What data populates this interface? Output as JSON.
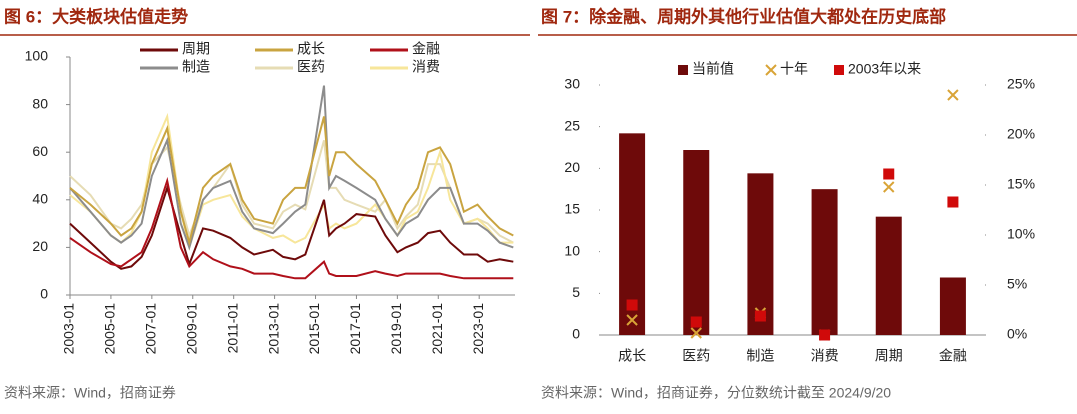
{
  "chart_data": [
    {
      "type": "line",
      "title": "图 6：大类板块估值走势",
      "source": "资料来源：Wind，招商证券",
      "x": [
        "2003-01",
        "2004-01",
        "2005-01",
        "2005-07",
        "2006-01",
        "2006-07",
        "2007-01",
        "2007-10",
        "2008-06",
        "2008-11",
        "2009-07",
        "2010-01",
        "2010-11",
        "2011-06",
        "2012-01",
        "2012-12",
        "2013-06",
        "2014-01",
        "2014-07",
        "2015-06",
        "2015-09",
        "2016-01",
        "2016-06",
        "2017-01",
        "2017-12",
        "2018-06",
        "2019-01",
        "2019-06",
        "2020-01",
        "2020-07",
        "2021-02",
        "2021-08",
        "2022-04",
        "2022-12",
        "2023-06",
        "2024-01",
        "2024-09"
      ],
      "xlim": [
        "2003-01",
        "2024-10"
      ],
      "xticks": [
        "2003-01",
        "2005-01",
        "2007-01",
        "2009-01",
        "2011-01",
        "2013-01",
        "2015-01",
        "2017-01",
        "2019-01",
        "2021-01",
        "2023-01"
      ],
      "ylim": [
        0,
        100
      ],
      "yticks": [
        0,
        20,
        40,
        60,
        80,
        100
      ],
      "legend": "top",
      "series": [
        {
          "name": "周期",
          "color": "#6e0a0a",
          "values": [
            30,
            22,
            14,
            11,
            12,
            16,
            25,
            45,
            25,
            13,
            28,
            27,
            24,
            20,
            17,
            19,
            16,
            15,
            17,
            40,
            25,
            28,
            30,
            34,
            33,
            25,
            18,
            20,
            22,
            26,
            27,
            22,
            17,
            17,
            14,
            15,
            14
          ]
        },
        {
          "name": "成长",
          "color": "#c9a440",
          "values": [
            45,
            38,
            30,
            25,
            28,
            35,
            55,
            70,
            35,
            22,
            45,
            50,
            55,
            40,
            32,
            30,
            40,
            45,
            45,
            75,
            50,
            60,
            60,
            55,
            48,
            40,
            30,
            38,
            45,
            60,
            62,
            55,
            35,
            38,
            33,
            28,
            25
          ]
        },
        {
          "name": "金融",
          "color": "#b0101a",
          "values": [
            24,
            18,
            13,
            12,
            15,
            18,
            28,
            48,
            20,
            12,
            18,
            15,
            12,
            11,
            9,
            9,
            8,
            7,
            7,
            14,
            9,
            8,
            8,
            8,
            10,
            9,
            8,
            9,
            9,
            9,
            9,
            8,
            7,
            7,
            7,
            7,
            7
          ]
        },
        {
          "name": "制造",
          "color": "#8c8c8c",
          "values": [
            45,
            35,
            25,
            22,
            25,
            30,
            50,
            65,
            30,
            20,
            40,
            45,
            48,
            35,
            28,
            26,
            30,
            35,
            38,
            88,
            45,
            50,
            48,
            45,
            40,
            32,
            25,
            30,
            33,
            40,
            45,
            45,
            30,
            30,
            27,
            22,
            20
          ]
        },
        {
          "name": "医药",
          "color": "#e6dcb4",
          "values": [
            50,
            42,
            30,
            28,
            32,
            38,
            55,
            62,
            38,
            25,
            40,
            45,
            55,
            38,
            30,
            28,
            35,
            38,
            36,
            65,
            45,
            45,
            40,
            38,
            35,
            40,
            28,
            33,
            38,
            55,
            55,
            45,
            30,
            32,
            30,
            25,
            22
          ]
        },
        {
          "name": "消费",
          "color": "#f7e69a",
          "values": [
            42,
            35,
            25,
            22,
            26,
            35,
            60,
            75,
            35,
            20,
            38,
            40,
            42,
            33,
            28,
            24,
            25,
            22,
            24,
            38,
            28,
            30,
            28,
            30,
            38,
            32,
            25,
            32,
            35,
            45,
            60,
            40,
            30,
            32,
            28,
            22,
            22
          ]
        }
      ]
    },
    {
      "type": "bar-scatter",
      "title": "图 7：除金融、周期外其他行业估值大都处在历史底部",
      "source": "资料来源：Wind，招商证券，分位数统计截至 2024/9/20",
      "categories": [
        "成长",
        "医药",
        "制造",
        "消费",
        "周期",
        "金融"
      ],
      "ylim": [
        0,
        30
      ],
      "yticks": [
        0,
        5,
        10,
        15,
        20,
        25,
        30
      ],
      "y2lim": [
        0,
        25
      ],
      "y2ticks": [
        {
          "value": 0,
          "label": "0%"
        },
        {
          "value": 5,
          "label": "5%"
        },
        {
          "value": 10,
          "label": "10%"
        },
        {
          "value": 15,
          "label": "15%"
        },
        {
          "value": 20,
          "label": "20%"
        },
        {
          "value": 25,
          "label": "25%"
        }
      ],
      "legend": "top",
      "series": [
        {
          "name": "当前值",
          "color": "#6e0a0a",
          "marker": "bar",
          "values": [
            24.2,
            22.2,
            19.4,
            17.5,
            14.2,
            6.9
          ]
        },
        {
          "name": "十年",
          "color": "#d9a437",
          "marker": "x",
          "axis": "y2",
          "values": [
            1.5,
            0.2,
            2.2,
            0,
            14.8,
            24
          ]
        },
        {
          "name": "2003年以来",
          "color": "#d00a0a",
          "marker": "square",
          "axis": "y2",
          "values": [
            3,
            1.3,
            1.9,
            0,
            16.1,
            13.3
          ]
        }
      ]
    }
  ]
}
